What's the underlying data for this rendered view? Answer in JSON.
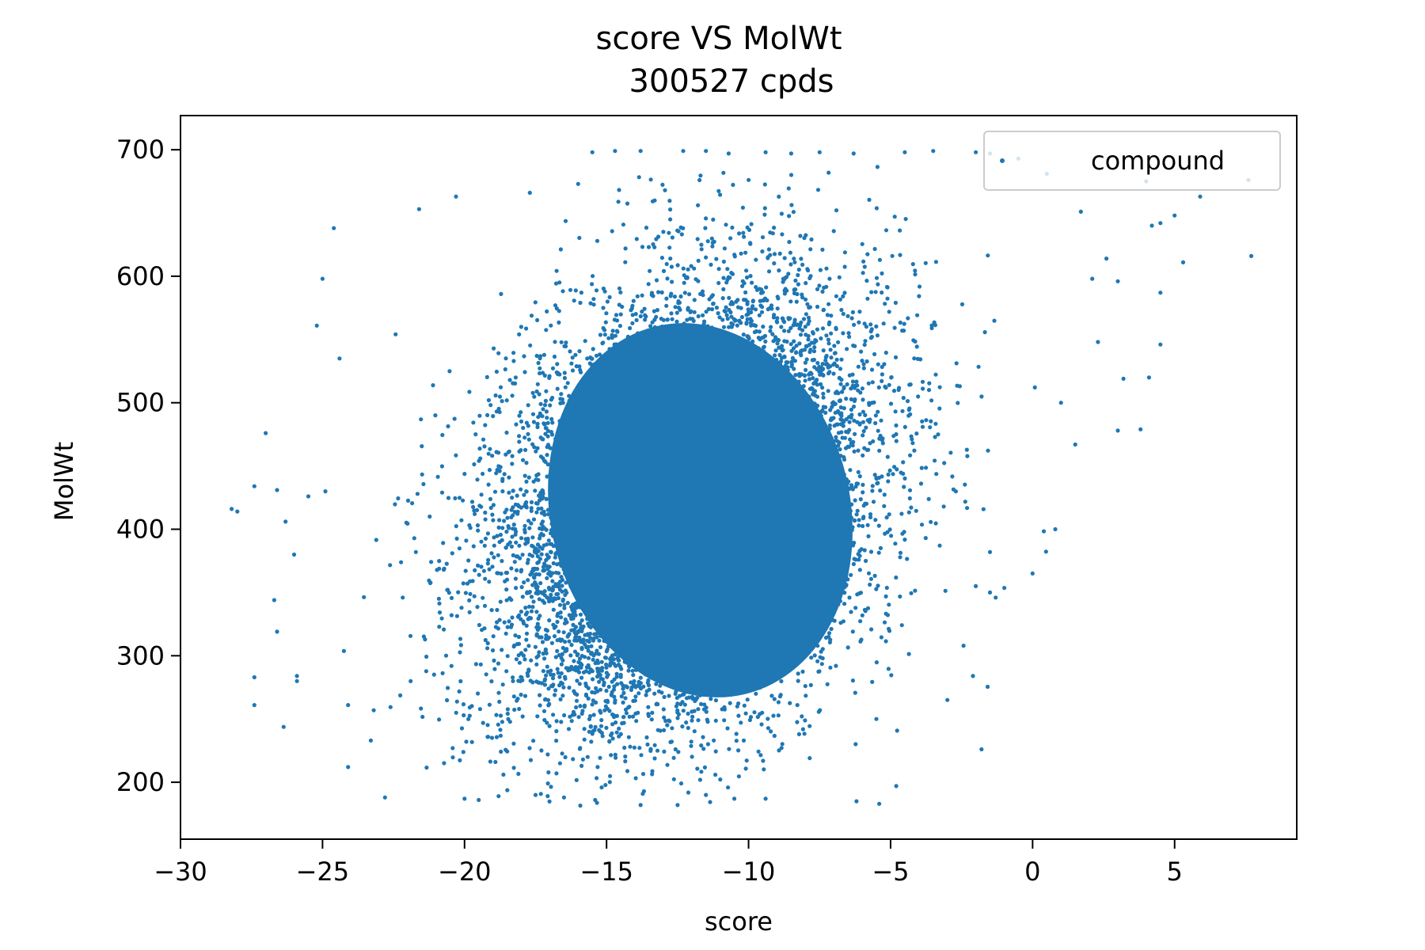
{
  "chart_data": {
    "type": "scatter",
    "title": "score VS MolWt",
    "subtitle": "300527 cpds",
    "xlabel": "score",
    "ylabel": "MolWt",
    "xlim": [
      -30,
      9.3
    ],
    "ylim": [
      155,
      727
    ],
    "x_ticks": [
      -30,
      -25,
      -20,
      -15,
      -10,
      -5,
      0,
      5
    ],
    "x_tick_labels": [
      "−30",
      "−25",
      "−20",
      "−15",
      "−10",
      "−5",
      "0",
      "5"
    ],
    "y_ticks": [
      200,
      300,
      400,
      500,
      600,
      700
    ],
    "y_tick_labels": [
      "200",
      "300",
      "400",
      "500",
      "600",
      "700"
    ],
    "grid": false,
    "legend": {
      "placement": "top-right"
    },
    "colors": {
      "series": "#1f77b4",
      "axes": "#000000",
      "background": "#ffffff"
    },
    "series": [
      {
        "name": "compound",
        "count": 300527,
        "distribution": {
          "x_mean": -12.3,
          "x_sd": 3.4,
          "y_mean": 420,
          "y_sd": 88,
          "correlation": 0.28,
          "y_min": 181,
          "y_max": 700
        },
        "points": [
          [
            -28.2,
            416
          ],
          [
            -28.0,
            414
          ],
          [
            -27.4,
            434
          ],
          [
            -27.4,
            283
          ],
          [
            -27.4,
            261
          ],
          [
            -27.0,
            476
          ],
          [
            -26.6,
            431
          ],
          [
            -26.7,
            344
          ],
          [
            -26.6,
            319
          ],
          [
            -26.3,
            406
          ],
          [
            -26.0,
            380
          ],
          [
            -25.9,
            284
          ],
          [
            -25.9,
            280
          ],
          [
            -25.5,
            426
          ],
          [
            -25.2,
            561
          ],
          [
            -25.0,
            598
          ],
          [
            -24.9,
            430
          ],
          [
            -24.6,
            638
          ],
          [
            -24.4,
            535
          ],
          [
            -24.1,
            261
          ],
          [
            -24.1,
            212
          ],
          [
            -23.3,
            233
          ],
          [
            -22.8,
            188
          ],
          [
            -21.6,
            653
          ],
          [
            -20.3,
            663
          ],
          [
            -20.0,
            187
          ],
          [
            -19.5,
            186
          ],
          [
            -17.7,
            666
          ],
          [
            -16.0,
            673
          ],
          [
            -15.5,
            698
          ],
          [
            -14.7,
            699
          ],
          [
            -13.8,
            699
          ],
          [
            -12.3,
            699
          ],
          [
            -11.5,
            699
          ],
          [
            -10.7,
            697
          ],
          [
            -9.4,
            698
          ],
          [
            -8.5,
            697
          ],
          [
            -7.5,
            698
          ],
          [
            -6.3,
            697
          ],
          [
            -4.5,
            698
          ],
          [
            -3.5,
            699
          ],
          [
            -2.0,
            698
          ],
          [
            -1.5,
            697
          ],
          [
            -0.5,
            693
          ],
          [
            0.5,
            681
          ],
          [
            1.7,
            651
          ],
          [
            2.1,
            598
          ],
          [
            2.6,
            614
          ],
          [
            3.0,
            596
          ],
          [
            4.0,
            675
          ],
          [
            4.2,
            640
          ],
          [
            4.5,
            642
          ],
          [
            4.5,
            587
          ],
          [
            4.5,
            546
          ],
          [
            5.0,
            648
          ],
          [
            5.3,
            611
          ],
          [
            5.9,
            663
          ],
          [
            7.6,
            676
          ],
          [
            7.7,
            616
          ],
          [
            2.3,
            548
          ],
          [
            1.0,
            500
          ],
          [
            1.5,
            467
          ],
          [
            3.0,
            478
          ],
          [
            3.2,
            519
          ],
          [
            3.8,
            479
          ],
          [
            4.1,
            520
          ],
          [
            0.8,
            400
          ],
          [
            0.0,
            365
          ],
          [
            -1.3,
            346
          ],
          [
            -2.0,
            355
          ],
          [
            -1.5,
            382
          ],
          [
            -2.1,
            284
          ],
          [
            -3.0,
            265
          ],
          [
            -1.5,
            350
          ],
          [
            -1.8,
            226
          ],
          [
            -5.5,
            250
          ],
          [
            -4.8,
            197
          ],
          [
            -5.4,
            183
          ],
          [
            -6.2,
            185
          ],
          [
            -9.4,
            187
          ],
          [
            -10.5,
            187
          ],
          [
            -11.5,
            190
          ],
          [
            -12.5,
            182
          ],
          [
            -13.8,
            182
          ],
          [
            -15.4,
            186
          ],
          [
            -16.5,
            188
          ],
          [
            -17.5,
            190
          ],
          [
            -18.8,
            189
          ]
        ]
      }
    ]
  }
}
